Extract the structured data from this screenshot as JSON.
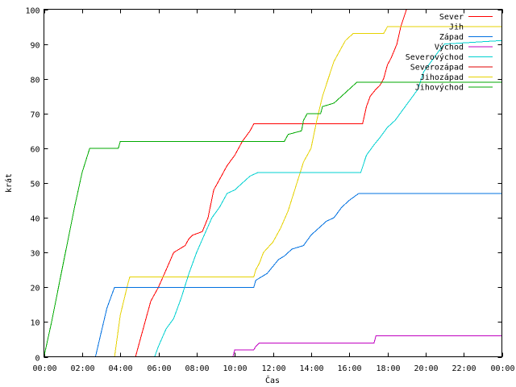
{
  "chart_data": {
    "type": "line",
    "title": "",
    "xlabel": "Čas",
    "ylabel": "krát",
    "xlim": [
      0,
      24
    ],
    "ylim": [
      0,
      100
    ],
    "x_ticks": [
      {
        "value": 0,
        "label": "00:00"
      },
      {
        "value": 2,
        "label": "02:00"
      },
      {
        "value": 4,
        "label": "04:00"
      },
      {
        "value": 6,
        "label": "06:00"
      },
      {
        "value": 8,
        "label": "08:00"
      },
      {
        "value": 10,
        "label": "10:00"
      },
      {
        "value": 12,
        "label": "12:00"
      },
      {
        "value": 14,
        "label": "14:00"
      },
      {
        "value": 16,
        "label": "16:00"
      },
      {
        "value": 18,
        "label": "18:00"
      },
      {
        "value": 20,
        "label": "20:00"
      },
      {
        "value": 22,
        "label": "22:00"
      },
      {
        "value": 24,
        "label": "00:00"
      }
    ],
    "y_ticks": [
      {
        "value": 0,
        "label": "0"
      },
      {
        "value": 10,
        "label": "10"
      },
      {
        "value": 20,
        "label": "20"
      },
      {
        "value": 30,
        "label": "30"
      },
      {
        "value": 40,
        "label": "40"
      },
      {
        "value": 50,
        "label": "50"
      },
      {
        "value": 60,
        "label": "60"
      },
      {
        "value": 70,
        "label": "70"
      },
      {
        "value": 80,
        "label": "80"
      },
      {
        "value": 90,
        "label": "90"
      },
      {
        "value": 100,
        "label": "100"
      }
    ],
    "grid": false,
    "legend": "top-right",
    "series": [
      {
        "name": "Sever",
        "color": "#ff0000",
        "points": [
          [
            4.8,
            0
          ],
          [
            5.0,
            4
          ],
          [
            5.3,
            10
          ],
          [
            5.6,
            16
          ],
          [
            6.0,
            20
          ],
          [
            6.4,
            25
          ],
          [
            6.8,
            30
          ],
          [
            7.4,
            32
          ],
          [
            7.6,
            34
          ],
          [
            7.8,
            35
          ],
          [
            8.3,
            36
          ],
          [
            8.6,
            40
          ],
          [
            8.9,
            48
          ],
          [
            9.3,
            52
          ],
          [
            9.6,
            55
          ],
          [
            10.0,
            58
          ],
          [
            10.4,
            62
          ],
          [
            10.8,
            65
          ],
          [
            11.0,
            67
          ],
          [
            12.0,
            67
          ],
          [
            14.0,
            67
          ],
          [
            16.7,
            67
          ],
          [
            16.9,
            72
          ],
          [
            17.1,
            75
          ],
          [
            17.4,
            77
          ],
          [
            17.6,
            78
          ],
          [
            17.8,
            80
          ],
          [
            18.0,
            84
          ],
          [
            18.2,
            86
          ],
          [
            18.5,
            90
          ],
          [
            18.7,
            95
          ],
          [
            19.0,
            100
          ]
        ]
      },
      {
        "name": "Jih",
        "color": "#e6d200",
        "points": [
          [
            3.7,
            0
          ],
          [
            4.0,
            12
          ],
          [
            4.4,
            21
          ],
          [
            4.5,
            23
          ],
          [
            6.0,
            23
          ],
          [
            8.0,
            23
          ],
          [
            11.0,
            23
          ],
          [
            11.1,
            25
          ],
          [
            11.3,
            27
          ],
          [
            11.5,
            30
          ],
          [
            12.0,
            33
          ],
          [
            12.4,
            37
          ],
          [
            12.8,
            42
          ],
          [
            13.2,
            49
          ],
          [
            13.6,
            56
          ],
          [
            14.0,
            60
          ],
          [
            14.3,
            68
          ],
          [
            14.6,
            75
          ],
          [
            14.9,
            80
          ],
          [
            15.2,
            85
          ],
          [
            15.5,
            88
          ],
          [
            15.8,
            91
          ],
          [
            16.2,
            93
          ],
          [
            17.0,
            93
          ],
          [
            17.8,
            93
          ],
          [
            18.0,
            95
          ],
          [
            24.0,
            95
          ]
        ]
      },
      {
        "name": "Západ",
        "color": "#0070e0",
        "points": [
          [
            2.7,
            0
          ],
          [
            3.0,
            7
          ],
          [
            3.3,
            14
          ],
          [
            3.7,
            20
          ],
          [
            6.0,
            20
          ],
          [
            8.0,
            20
          ],
          [
            11.0,
            20
          ],
          [
            11.1,
            22
          ],
          [
            11.4,
            23
          ],
          [
            11.7,
            24
          ],
          [
            12.0,
            26
          ],
          [
            12.3,
            28
          ],
          [
            12.6,
            29
          ],
          [
            13.0,
            31
          ],
          [
            13.6,
            32
          ],
          [
            14.0,
            35
          ],
          [
            14.4,
            37
          ],
          [
            14.8,
            39
          ],
          [
            15.2,
            40
          ],
          [
            15.6,
            43
          ],
          [
            16.0,
            45
          ],
          [
            16.5,
            47
          ],
          [
            24.0,
            47
          ]
        ]
      },
      {
        "name": "Východ",
        "color": "#c000c0",
        "points": [
          [
            9.9,
            0
          ],
          [
            10.0,
            2
          ],
          [
            11.0,
            2
          ],
          [
            11.1,
            3
          ],
          [
            11.3,
            4
          ],
          [
            12.0,
            4
          ],
          [
            17.3,
            4
          ],
          [
            17.4,
            6
          ],
          [
            24.0,
            6
          ]
        ]
      },
      {
        "name": "Severovýchod",
        "color": "#00d0d0",
        "points": [
          [
            5.8,
            0
          ],
          [
            6.0,
            3
          ],
          [
            6.4,
            8
          ],
          [
            6.8,
            11
          ],
          [
            7.2,
            17
          ],
          [
            7.6,
            24
          ],
          [
            8.0,
            30
          ],
          [
            8.4,
            35
          ],
          [
            8.8,
            40
          ],
          [
            9.2,
            43
          ],
          [
            9.6,
            47
          ],
          [
            10.0,
            48
          ],
          [
            10.4,
            50
          ],
          [
            10.8,
            52
          ],
          [
            11.2,
            53
          ],
          [
            16.6,
            53
          ],
          [
            16.9,
            58
          ],
          [
            17.3,
            61
          ],
          [
            17.6,
            63
          ],
          [
            18.0,
            66
          ],
          [
            18.4,
            68
          ],
          [
            18.8,
            71
          ],
          [
            19.2,
            74
          ],
          [
            19.6,
            77
          ],
          [
            19.9,
            82
          ],
          [
            20.3,
            85
          ],
          [
            20.7,
            88
          ],
          [
            21.0,
            90
          ],
          [
            24.0,
            91
          ]
        ]
      },
      {
        "name": "Severozápad",
        "color": "#e00000",
        "points": []
      },
      {
        "name": "Jihozápad",
        "color": "#e6d200",
        "points": []
      },
      {
        "name": "Jihovýchod",
        "color": "#00aa00",
        "points": [
          [
            0.0,
            0
          ],
          [
            0.4,
            10
          ],
          [
            0.8,
            21
          ],
          [
            1.2,
            32
          ],
          [
            1.6,
            43
          ],
          [
            2.0,
            53
          ],
          [
            2.4,
            60
          ],
          [
            3.9,
            60
          ],
          [
            4.0,
            62
          ],
          [
            6.0,
            62
          ],
          [
            10.0,
            62
          ],
          [
            12.6,
            62
          ],
          [
            12.8,
            64
          ],
          [
            13.5,
            65
          ],
          [
            13.6,
            68
          ],
          [
            13.8,
            70
          ],
          [
            14.5,
            70
          ],
          [
            14.6,
            72
          ],
          [
            15.2,
            73
          ],
          [
            15.6,
            75
          ],
          [
            16.0,
            77
          ],
          [
            16.4,
            79
          ],
          [
            24.0,
            79
          ]
        ]
      }
    ]
  }
}
